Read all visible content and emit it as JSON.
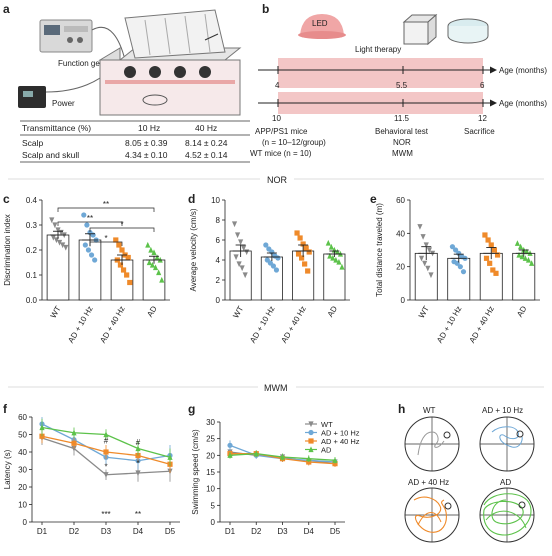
{
  "panels": {
    "a": {
      "letter": "a",
      "labels": {
        "generator": "Function generator",
        "power": "Power"
      },
      "table": {
        "headers": [
          "Transmittance (%)",
          "10 Hz",
          "40 Hz"
        ],
        "rows": [
          [
            "Scalp",
            "8.05 ± 0.39",
            "8.14 ± 0.24"
          ],
          [
            "Scalp and skull",
            "4.34 ± 0.10",
            "4.52 ± 0.14"
          ]
        ]
      }
    },
    "b": {
      "letter": "b",
      "led": "LED",
      "light_therapy": "Light therapy",
      "age_label": "Age (months)",
      "top_ticks": [
        "4",
        "5.5",
        "6"
      ],
      "bottom_ticks": [
        "10",
        "11.5",
        "12"
      ],
      "mice_lines": [
        "APP/PS1 mice",
        "(n = 10–12/group)",
        "WT mice (n = 10)"
      ],
      "test_lines": [
        "Behavioral test",
        "NOR",
        "MWM"
      ],
      "sacrifice": "Sacrifice"
    },
    "c": {
      "letter": "c"
    },
    "d": {
      "letter": "d"
    },
    "e": {
      "letter": "e"
    },
    "f": {
      "letter": "f"
    },
    "g": {
      "letter": "g"
    },
    "h": {
      "letter": "h",
      "titles": [
        "WT",
        "AD + 10 Hz",
        "AD + 40 Hz",
        "AD"
      ]
    }
  },
  "sections": {
    "nor": "NOR",
    "mwm": "MWM"
  },
  "colors": {
    "wt": "#8a8a8a",
    "ad10": "#6fa8d6",
    "ad40": "#ef8a2a",
    "ad": "#5cc24a",
    "pink": "#f3c6c6"
  },
  "chart_data": [
    {
      "panel": "c",
      "type": "bar",
      "categories": [
        "WT",
        "AD + 10 Hz",
        "AD + 40 Hz",
        "AD"
      ],
      "values": [
        0.26,
        0.24,
        0.16,
        0.16
      ],
      "errors": [
        0.015,
        0.025,
        0.02,
        0.015
      ],
      "points": [
        [
          0.32,
          0.3,
          0.28,
          0.27,
          0.26,
          0.25,
          0.24,
          0.23,
          0.22,
          0.21
        ],
        [
          0.34,
          0.3,
          0.27,
          0.26,
          0.24,
          0.22,
          0.2,
          0.18,
          0.16
        ],
        [
          0.24,
          0.22,
          0.2,
          0.18,
          0.17,
          0.16,
          0.14,
          0.12,
          0.1,
          0.07
        ],
        [
          0.22,
          0.2,
          0.19,
          0.17,
          0.16,
          0.15,
          0.14,
          0.13,
          0.11,
          0.08
        ]
      ],
      "ylabel": "Discrimination index",
      "ylim": [
        0,
        0.4
      ],
      "yticks": [
        "0.0",
        "0.1",
        "0.2",
        "0.3",
        "0.4"
      ],
      "significance": [
        {
          "from": 0,
          "to": 3,
          "label": "**"
        },
        {
          "from": 0,
          "to": 2,
          "label": "**"
        },
        {
          "from": 1,
          "to": 2,
          "label": "*"
        },
        {
          "from": 1,
          "to": 3,
          "label": "*"
        }
      ]
    },
    {
      "panel": "d",
      "type": "bar",
      "categories": [
        "WT",
        "AD + 10 Hz",
        "AD + 40 Hz",
        "AD"
      ],
      "values": [
        4.9,
        4.3,
        4.9,
        4.6
      ],
      "errors": [
        0.6,
        0.4,
        0.6,
        0.3
      ],
      "points": [
        [
          7.6,
          6.5,
          5.8,
          5.2,
          4.8,
          4.3,
          3.6,
          3.2,
          2.5
        ],
        [
          5.5,
          5.1,
          4.8,
          4.4,
          4.2,
          4.0,
          3.7,
          3.4,
          3.0
        ],
        [
          6.7,
          6.2,
          5.6,
          5.2,
          4.8,
          4.6,
          4.2,
          3.6,
          2.9
        ],
        [
          5.7,
          5.3,
          5.0,
          4.8,
          4.6,
          4.4,
          4.2,
          4.0,
          3.8,
          3.3
        ]
      ],
      "ylabel": "Average velocity (cm/s)",
      "ylim": [
        0,
        10
      ],
      "yticks": [
        "0",
        "2",
        "4",
        "6",
        "8",
        "10"
      ]
    },
    {
      "panel": "e",
      "type": "bar",
      "categories": [
        "WT",
        "AD + 10 Hz",
        "AD + 40 Hz",
        "AD"
      ],
      "values": [
        28,
        25,
        28,
        28
      ],
      "errors": [
        4,
        2.5,
        3.5,
        2
      ],
      "points": [
        [
          44,
          38,
          33,
          30,
          28,
          25,
          22,
          19,
          15
        ],
        [
          32,
          30,
          28,
          26,
          25,
          23,
          22,
          20,
          17
        ],
        [
          39,
          36,
          33,
          30,
          27,
          25,
          22,
          18,
          16
        ],
        [
          34,
          32,
          30,
          29,
          28,
          27,
          26,
          25,
          24,
          22
        ]
      ],
      "ylabel": "Total distance traveled (m)",
      "ylim": [
        0,
        60
      ],
      "yticks": [
        "0",
        "20",
        "40",
        "60"
      ]
    },
    {
      "panel": "f",
      "type": "line",
      "x": [
        "D1",
        "D2",
        "D3",
        "D4",
        "D5"
      ],
      "series": [
        {
          "name": "WT",
          "values": [
            48,
            42,
            27,
            28,
            29
          ],
          "errors": [
            4,
            4,
            3,
            5,
            6
          ]
        },
        {
          "name": "AD + 10 Hz",
          "values": [
            56,
            47,
            37,
            35,
            38
          ],
          "errors": [
            4,
            4,
            4,
            5,
            6
          ]
        },
        {
          "name": "AD + 40 Hz",
          "values": [
            49,
            45,
            40,
            38,
            33
          ],
          "errors": [
            4,
            3,
            4,
            4,
            5
          ]
        },
        {
          "name": "AD",
          "values": [
            54,
            51,
            50,
            42,
            37
          ],
          "errors": [
            5,
            3,
            3,
            4,
            5
          ]
        }
      ],
      "ylabel": "Latency (s)",
      "ylim": [
        0,
        60
      ],
      "yticks": [
        "0",
        "10",
        "20",
        "30",
        "40",
        "50",
        "60"
      ],
      "annotations": [
        {
          "x": 2,
          "y": 30,
          "text": "*"
        },
        {
          "x": 3,
          "y": 32,
          "text": "*"
        },
        {
          "x": 2,
          "y": 45,
          "text": "#"
        },
        {
          "x": 3,
          "y": 44,
          "text": "#"
        },
        {
          "x": 2,
          "y": 3,
          "text": "***"
        },
        {
          "x": 3,
          "y": 3,
          "text": "**"
        }
      ]
    },
    {
      "panel": "g",
      "type": "line",
      "x": [
        "D1",
        "D2",
        "D3",
        "D4",
        "D5"
      ],
      "series": [
        {
          "name": "WT",
          "values": [
            21,
            20,
            19.5,
            18,
            18
          ],
          "errors": [
            1,
            1,
            1,
            1,
            1
          ]
        },
        {
          "name": "AD + 10 Hz",
          "values": [
            23,
            20,
            19,
            18.5,
            18
          ],
          "errors": [
            1.5,
            1,
            1,
            1,
            1
          ]
        },
        {
          "name": "AD + 40 Hz",
          "values": [
            20.5,
            20.5,
            19,
            18,
            17.5
          ],
          "errors": [
            1,
            1,
            1,
            1,
            1
          ]
        },
        {
          "name": "AD",
          "values": [
            20,
            20.5,
            19.5,
            19,
            18.5
          ],
          "errors": [
            1,
            1,
            1,
            1,
            1
          ]
        }
      ],
      "ylabel": "Swimming speed (cm/s)",
      "ylim": [
        0,
        30
      ],
      "yticks": [
        "0",
        "5",
        "10",
        "15",
        "20",
        "25",
        "30"
      ]
    }
  ]
}
